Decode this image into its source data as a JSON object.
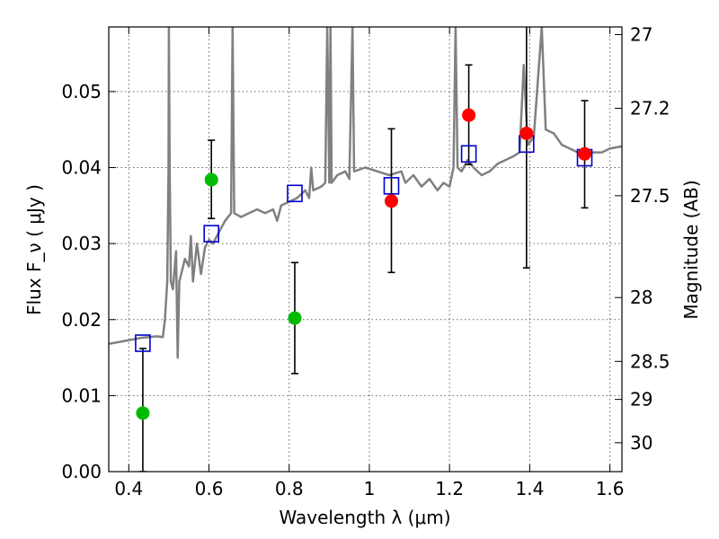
{
  "chart_data": {
    "type": "scatter",
    "xlabel": "Wavelength  λ (μm)",
    "ylabel": "Flux  F_ν  ( μJy )",
    "ylabel_right": "Magnitude (AB)",
    "xlim": [
      0.35,
      1.63
    ],
    "ylim": [
      0.0,
      0.0585
    ],
    "grid": true,
    "x_ticks": [
      0.4,
      0.6,
      0.8,
      1.0,
      1.2,
      1.4,
      1.6
    ],
    "x_tick_labels": [
      "0.4",
      "0.6",
      "0.8",
      "1",
      "1.2",
      "1.4",
      "1.6"
    ],
    "y_ticks": [
      0.0,
      0.01,
      0.02,
      0.03,
      0.04,
      0.05
    ],
    "y_tick_labels": [
      "0.00",
      "0.01",
      "0.02",
      "0.03",
      "0.04",
      "0.05"
    ],
    "right_ticks": [
      {
        "label": "27",
        "flux": 0.0575
      },
      {
        "label": "27.2",
        "flux": 0.0478
      },
      {
        "label": "27.5",
        "flux": 0.0363
      },
      {
        "label": "28",
        "flux": 0.0229
      },
      {
        "label": "28.5",
        "flux": 0.0145
      },
      {
        "label": "29",
        "flux": 0.0095
      },
      {
        "label": "30",
        "flux": 0.0038
      }
    ],
    "observed_green": [
      {
        "x": 0.435,
        "y": 0.0077,
        "err_lo": 0.0077,
        "err_hi": 0.0085
      },
      {
        "x": 0.606,
        "y": 0.0384,
        "err_lo": 0.0051,
        "err_hi": 0.0052
      },
      {
        "x": 0.814,
        "y": 0.0202,
        "err_lo": 0.0073,
        "err_hi": 0.0073
      }
    ],
    "observed_red": [
      {
        "x": 1.055,
        "y": 0.0356,
        "err_lo": 0.0094,
        "err_hi": 0.0095
      },
      {
        "x": 1.248,
        "y": 0.0469,
        "err_lo": 0.0065,
        "err_hi": 0.0066
      },
      {
        "x": 1.392,
        "y": 0.0445,
        "err_lo": 0.0177,
        "err_hi": 0.0145
      },
      {
        "x": 1.537,
        "y": 0.0418,
        "err_lo": 0.0071,
        "err_hi": 0.007
      }
    ],
    "model_photometry": [
      {
        "x": 0.435,
        "y": 0.0169
      },
      {
        "x": 0.606,
        "y": 0.0313
      },
      {
        "x": 0.814,
        "y": 0.0366
      },
      {
        "x": 1.055,
        "y": 0.0376
      },
      {
        "x": 1.248,
        "y": 0.0418
      },
      {
        "x": 1.392,
        "y": 0.0431
      },
      {
        "x": 1.537,
        "y": 0.0413
      }
    ],
    "model_spectrum": [
      [
        0.35,
        0.0168
      ],
      [
        0.37,
        0.017
      ],
      [
        0.39,
        0.0172
      ],
      [
        0.41,
        0.0174
      ],
      [
        0.43,
        0.0176
      ],
      [
        0.45,
        0.0177
      ],
      [
        0.47,
        0.0178
      ],
      [
        0.485,
        0.0177
      ],
      [
        0.49,
        0.02
      ],
      [
        0.496,
        0.025
      ],
      [
        0.499,
        0.04
      ],
      [
        0.5,
        0.0585
      ],
      [
        0.502,
        0.04
      ],
      [
        0.505,
        0.025
      ],
      [
        0.51,
        0.024
      ],
      [
        0.518,
        0.029
      ],
      [
        0.522,
        0.015
      ],
      [
        0.526,
        0.025
      ],
      [
        0.54,
        0.028
      ],
      [
        0.55,
        0.027
      ],
      [
        0.555,
        0.031
      ],
      [
        0.56,
        0.025
      ],
      [
        0.57,
        0.03
      ],
      [
        0.58,
        0.026
      ],
      [
        0.59,
        0.0295
      ],
      [
        0.6,
        0.0305
      ],
      [
        0.61,
        0.03
      ],
      [
        0.62,
        0.031
      ],
      [
        0.63,
        0.032
      ],
      [
        0.64,
        0.033
      ],
      [
        0.655,
        0.034
      ],
      [
        0.659,
        0.0585
      ],
      [
        0.663,
        0.034
      ],
      [
        0.68,
        0.0335
      ],
      [
        0.7,
        0.034
      ],
      [
        0.72,
        0.0345
      ],
      [
        0.74,
        0.034
      ],
      [
        0.76,
        0.0345
      ],
      [
        0.77,
        0.033
      ],
      [
        0.78,
        0.035
      ],
      [
        0.8,
        0.0355
      ],
      [
        0.82,
        0.036
      ],
      [
        0.84,
        0.037
      ],
      [
        0.85,
        0.036
      ],
      [
        0.855,
        0.04
      ],
      [
        0.86,
        0.037
      ],
      [
        0.88,
        0.0375
      ],
      [
        0.89,
        0.038
      ],
      [
        0.895,
        0.0585
      ],
      [
        0.9,
        0.038
      ],
      [
        0.903,
        0.0585
      ],
      [
        0.906,
        0.038
      ],
      [
        0.92,
        0.039
      ],
      [
        0.94,
        0.0395
      ],
      [
        0.95,
        0.0385
      ],
      [
        0.958,
        0.0585
      ],
      [
        0.962,
        0.0395
      ],
      [
        0.99,
        0.04
      ],
      [
        1.02,
        0.0395
      ],
      [
        1.05,
        0.039
      ],
      [
        1.08,
        0.0395
      ],
      [
        1.09,
        0.038
      ],
      [
        1.11,
        0.039
      ],
      [
        1.13,
        0.0375
      ],
      [
        1.15,
        0.0385
      ],
      [
        1.17,
        0.037
      ],
      [
        1.185,
        0.038
      ],
      [
        1.2,
        0.0375
      ],
      [
        1.21,
        0.04
      ],
      [
        1.215,
        0.0585
      ],
      [
        1.22,
        0.04
      ],
      [
        1.23,
        0.0395
      ],
      [
        1.245,
        0.041
      ],
      [
        1.26,
        0.04
      ],
      [
        1.28,
        0.039
      ],
      [
        1.3,
        0.0395
      ],
      [
        1.32,
        0.0405
      ],
      [
        1.34,
        0.041
      ],
      [
        1.36,
        0.0415
      ],
      [
        1.375,
        0.042
      ],
      [
        1.385,
        0.0535
      ],
      [
        1.395,
        0.043
      ],
      [
        1.41,
        0.044
      ],
      [
        1.43,
        0.0585
      ],
      [
        1.44,
        0.045
      ],
      [
        1.46,
        0.0445
      ],
      [
        1.48,
        0.043
      ],
      [
        1.5,
        0.0425
      ],
      [
        1.52,
        0.042
      ],
      [
        1.54,
        0.0418
      ],
      [
        1.56,
        0.042
      ],
      [
        1.58,
        0.042
      ],
      [
        1.6,
        0.0425
      ],
      [
        1.63,
        0.0428
      ]
    ],
    "colors": {
      "green_points": "#00bb00",
      "red_points": "#ff0000",
      "model_boxes": "#0000cc",
      "spectrum": "#808080",
      "error_bars": "#000000",
      "grid": "#666666"
    }
  }
}
